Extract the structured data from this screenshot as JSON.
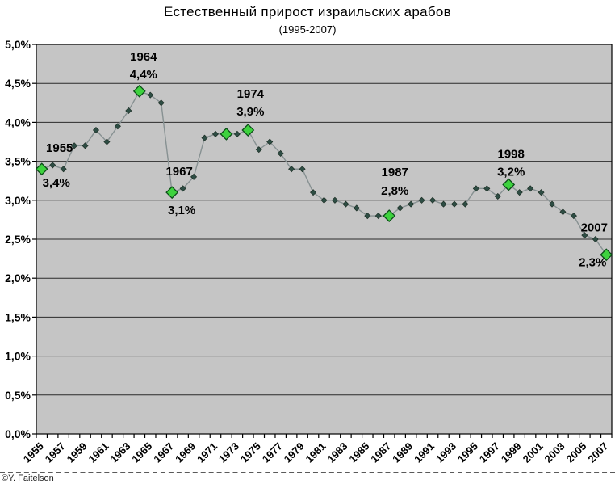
{
  "title": "Естественный прирост израильских арабов",
  "subtitle": "(1995-2007)",
  "credit": "©Y. Faitelson",
  "colors": {
    "chart_background": "#ffffff",
    "plot_background": "#c5c5c5",
    "gridline": "#2b2b2b",
    "axis": "#000000",
    "line": "#879192",
    "marker": "#2e4d44",
    "marker_outline": "#18291f",
    "highlight_fill": "#3ed23e",
    "highlight_outline": "#0b4d18",
    "text": "#000000"
  },
  "chart_data": {
    "type": "line",
    "title": "Естественный прирост израильских арабов",
    "subtitle": "(1995-2007)",
    "xlabel": "",
    "ylabel": "",
    "ylim": [
      0,
      5
    ],
    "y_tick_step": 0.5,
    "y_tick_labels": [
      "0,0%",
      "0,5%",
      "1,0%",
      "1,5%",
      "2,0%",
      "2,5%",
      "3,0%",
      "3,5%",
      "4,0%",
      "4,5%",
      "5,0%"
    ],
    "x_tick_labels": [
      "1955",
      "1957",
      "1959",
      "1961",
      "1963",
      "1965",
      "1967",
      "1969",
      "1971",
      "1973",
      "1975",
      "1977",
      "1979",
      "1981",
      "1983",
      "1985",
      "1987",
      "1989",
      "1991",
      "1993",
      "1995",
      "1997",
      "1999",
      "2001",
      "2003",
      "2005",
      "2007"
    ],
    "grid": "horizontal",
    "legend": "none",
    "years": [
      1955,
      1956,
      1957,
      1958,
      1959,
      1960,
      1961,
      1962,
      1963,
      1964,
      1965,
      1966,
      1967,
      1968,
      1969,
      1970,
      1971,
      1972,
      1973,
      1974,
      1975,
      1976,
      1977,
      1978,
      1979,
      1980,
      1981,
      1982,
      1983,
      1984,
      1985,
      1986,
      1987,
      1988,
      1989,
      1990,
      1991,
      1992,
      1993,
      1994,
      1995,
      1996,
      1997,
      1998,
      1999,
      2000,
      2001,
      2002,
      2003,
      2004,
      2005,
      2006,
      2007
    ],
    "values": [
      3.4,
      3.45,
      3.4,
      3.7,
      3.7,
      3.9,
      3.75,
      3.95,
      4.15,
      4.4,
      4.35,
      4.25,
      3.1,
      3.15,
      3.3,
      3.8,
      3.85,
      3.85,
      3.85,
      3.9,
      3.65,
      3.75,
      3.6,
      3.4,
      3.4,
      3.1,
      3.0,
      3.0,
      2.95,
      2.9,
      2.8,
      2.8,
      2.8,
      2.9,
      2.95,
      3.0,
      3.0,
      2.95,
      2.95,
      2.95,
      3.15,
      3.15,
      3.05,
      3.2,
      3.1,
      3.15,
      3.1,
      2.95,
      2.85,
      2.8,
      2.55,
      2.5,
      2.3
    ],
    "highlighted_years": [
      1955,
      1964,
      1967,
      1972,
      1974,
      1987,
      1998,
      2007
    ],
    "annotations": [
      {
        "year": 1955,
        "line1": "1955",
        "line2": "3,4%",
        "dx1": 22,
        "dy1": -26,
        "dx2": 18,
        "dy2": 17
      },
      {
        "year": 1964,
        "line1": "1964",
        "line2": "4,4%",
        "dx1": 5,
        "dy1": -43,
        "dx2": 5,
        "dy2": -21
      },
      {
        "year": 1967,
        "line1": "1967",
        "line2": "3,1%",
        "dx1": 9,
        "dy1": -26,
        "dx2": 12,
        "dy2": 22
      },
      {
        "year": 1974,
        "line1": "1974",
        "line2": "3,9%",
        "dx1": 3,
        "dy1": -45,
        "dx2": 3,
        "dy2": -23
      },
      {
        "year": 1987,
        "line1": "1987",
        "line2": "2,8%",
        "dx1": 7,
        "dy1": -54,
        "dx2": 7,
        "dy2": -31
      },
      {
        "year": 1998,
        "line1": "1998",
        "line2": "3,2%",
        "dx1": 3,
        "dy1": -38,
        "dx2": 3,
        "dy2": -16
      },
      {
        "year": 2007,
        "line1": "2007",
        "line2": "2,3%",
        "dx1": -15,
        "dy1": -34,
        "dx2": -17,
        "dy2": 9
      }
    ]
  }
}
